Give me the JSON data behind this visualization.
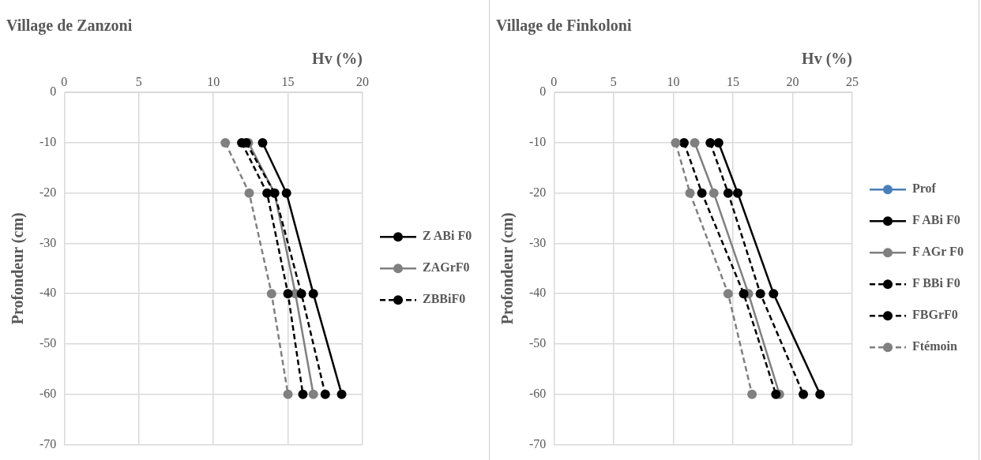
{
  "chart_data": [
    {
      "type": "line",
      "title": "Village de Zanzoni",
      "xlabel": "Hv (%)",
      "ylabel": "Profondeur (cm)",
      "xlim": [
        0,
        20
      ],
      "xticks": [
        0,
        5,
        10,
        15,
        20
      ],
      "ylim": [
        -70,
        0
      ],
      "yticks": [
        -70,
        -60,
        -50,
        -40,
        -30,
        -20,
        -10,
        0
      ],
      "grid": true,
      "legend": "right",
      "marker": "circle",
      "series": [
        {
          "name": "Z ABi F0",
          "color": "#000000",
          "line_style": "solid",
          "x": [
            13.3,
            14.9,
            16.7,
            18.6
          ],
          "values": [
            -10,
            -20,
            -40,
            -60
          ]
        },
        {
          "name": "ZAGrF0",
          "color": "#808080",
          "line_style": "solid",
          "x": [
            12.35,
            14.1,
            15.5,
            16.7
          ],
          "values": [
            -10,
            -20,
            -40,
            -60
          ]
        },
        {
          "name": "ZBBiF0",
          "color": "#000000",
          "line_style": "dashed",
          "x": [
            12.2,
            14.1,
            15.9,
            17.5
          ],
          "values": [
            -10,
            -20,
            -40,
            -60
          ]
        },
        {
          "color": "#000000",
          "line_style": "dashed",
          "x": [
            11.9,
            13.6,
            15.0,
            16.0
          ],
          "values": [
            -10,
            -20,
            -40,
            -60
          ]
        },
        {
          "color": "#808080",
          "line_style": "dashed",
          "x": [
            10.8,
            12.4,
            13.9,
            15.0
          ],
          "values": [
            -10,
            -20,
            -40,
            -60
          ]
        }
      ]
    },
    {
      "type": "line",
      "title": "Village de Finkoloni",
      "xlabel": "Hv (%)",
      "ylabel": "Profondeur (cm)",
      "xlim": [
        0,
        25
      ],
      "xticks": [
        0,
        5,
        10,
        15,
        20,
        25
      ],
      "ylim": [
        -70,
        0
      ],
      "yticks": [
        -70,
        -60,
        -50,
        -40,
        -30,
        -20,
        -10,
        0
      ],
      "grid": true,
      "legend": "right",
      "marker": "circle",
      "series": [
        {
          "name": "Prof",
          "color": "#4a7ebb",
          "line_style": "solid",
          "x": [
            null,
            null,
            null,
            null
          ],
          "values": [
            null,
            null,
            null,
            null
          ]
        },
        {
          "name": "F ABi F0",
          "color": "#000000",
          "line_style": "solid",
          "x": [
            13.8,
            15.4,
            18.4,
            22.3
          ],
          "values": [
            -10,
            -20,
            -40,
            -60
          ]
        },
        {
          "name": "F AGr F0",
          "color": "#808080",
          "line_style": "solid",
          "x": [
            11.8,
            13.4,
            16.3,
            18.9
          ],
          "values": [
            -10,
            -20,
            -40,
            -60
          ]
        },
        {
          "name": "F BBi F0",
          "color": "#000000",
          "line_style": "dashed",
          "x": [
            13.1,
            14.6,
            17.3,
            20.9
          ],
          "values": [
            -10,
            -20,
            -40,
            -60
          ]
        },
        {
          "name": "FBGrF0",
          "color": "#000000",
          "line_style": "dashed",
          "x": [
            10.9,
            12.4,
            15.9,
            18.6
          ],
          "values": [
            -10,
            -20,
            -40,
            -60
          ]
        },
        {
          "name": "Ftémoin",
          "color": "#808080",
          "line_style": "dashed",
          "x": [
            10.2,
            11.4,
            14.6,
            16.6
          ],
          "values": [
            -10,
            -20,
            -40,
            -60
          ]
        }
      ]
    }
  ]
}
